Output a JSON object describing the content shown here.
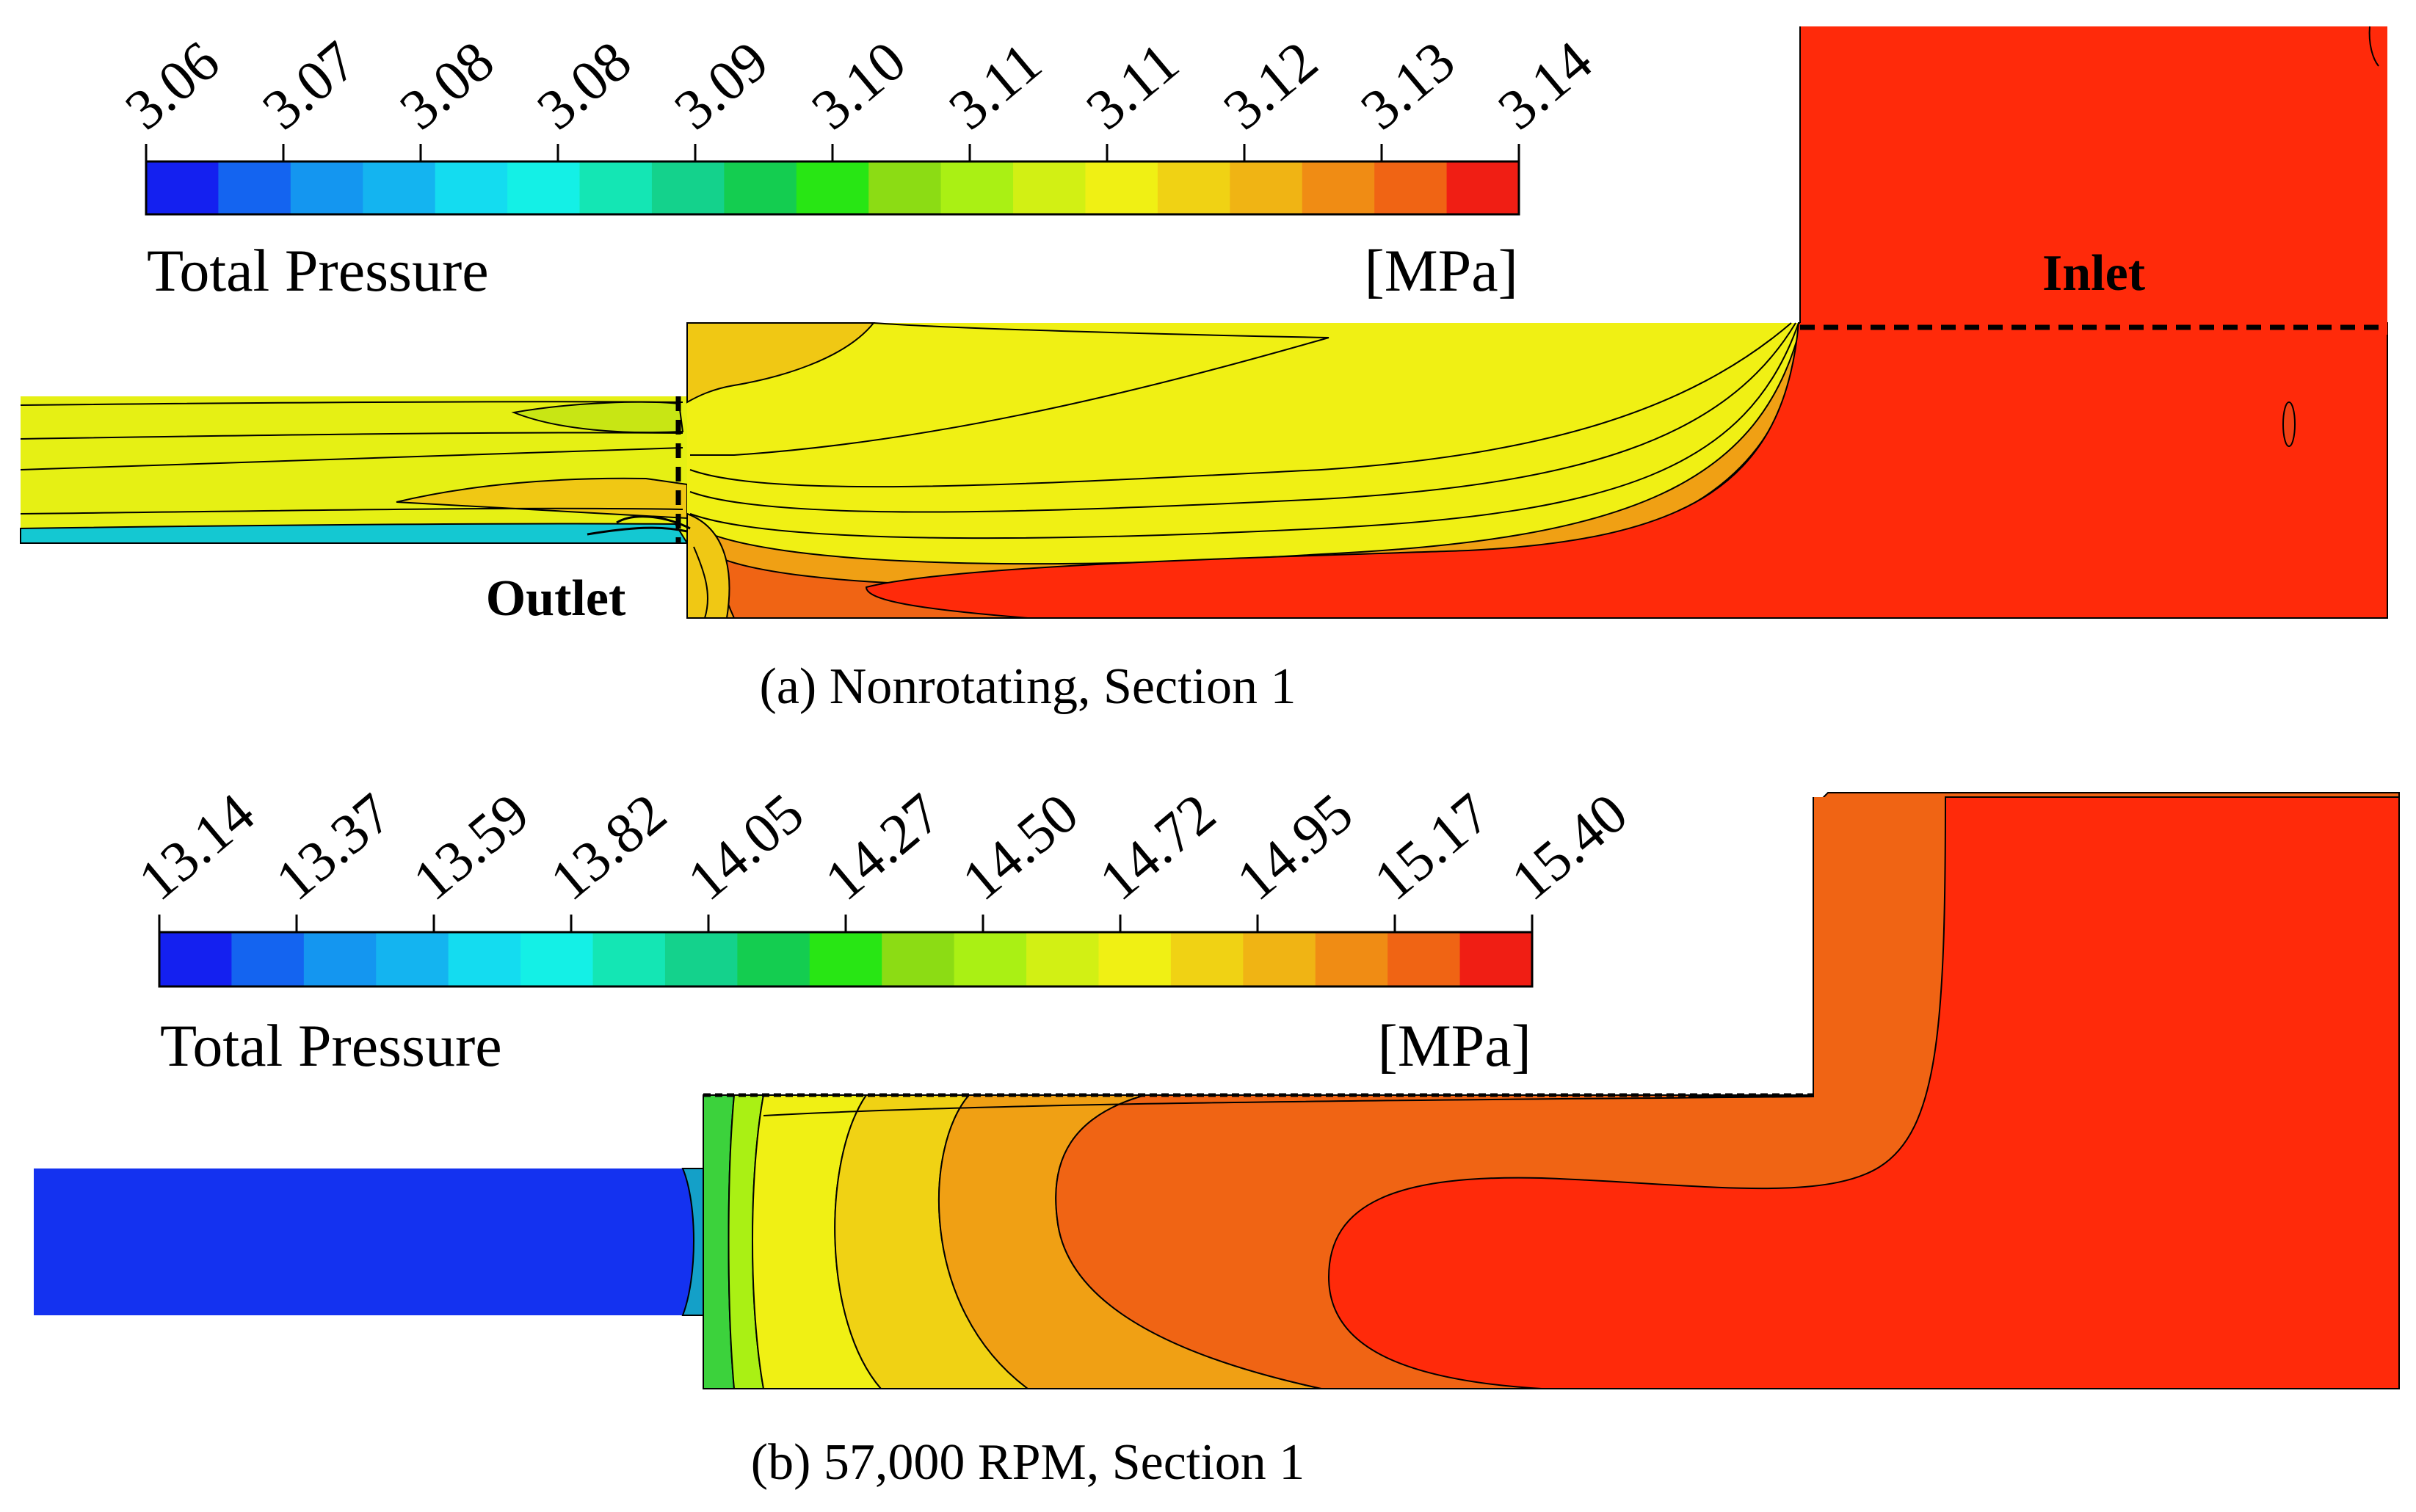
{
  "panel_a": {
    "caption": "(a) Nonrotating, Section 1",
    "legend": {
      "title": "Total Pressure",
      "unit": "[MPa]",
      "tick_labels": [
        "3.06",
        "3.07",
        "3.08",
        "3.08",
        "3.09",
        "3.10",
        "3.11",
        "3.11",
        "3.12",
        "3.13",
        "3.14"
      ]
    },
    "labels": {
      "inlet": "Inlet",
      "outlet": "Outlet"
    }
  },
  "panel_b": {
    "caption": "(b) 57,000 RPM, Section 1",
    "legend": {
      "title": "Total Pressure",
      "unit": "[MPa]",
      "tick_labels": [
        "13.14",
        "13.37",
        "13.59",
        "13.82",
        "14.05",
        "14.27",
        "14.50",
        "14.72",
        "14.95",
        "15.17",
        "15.40"
      ]
    }
  },
  "colormap": [
    "#1420f0",
    "#1464f0",
    "#1496f0",
    "#14b4f0",
    "#14dcf0",
    "#14f0e6",
    "#14e6b4",
    "#14d28c",
    "#14cd50",
    "#28e614",
    "#8cdc14",
    "#aaf014",
    "#d2f014",
    "#f0f014",
    "#f0d214",
    "#f0b414",
    "#f08c14",
    "#f06414",
    "#f01e14"
  ]
}
